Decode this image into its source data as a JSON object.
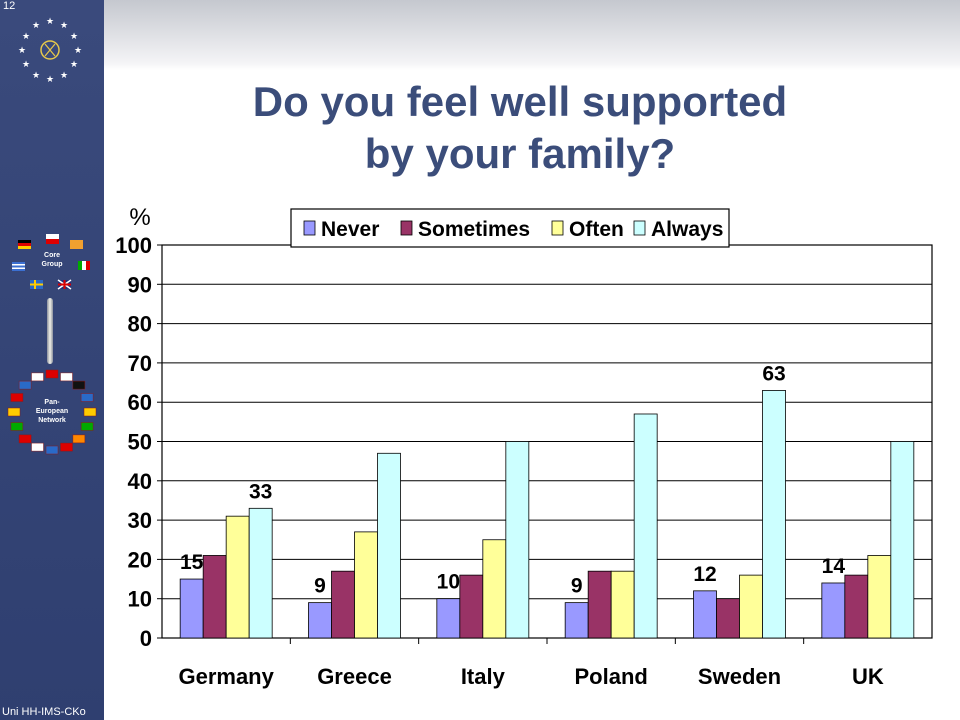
{
  "slide": {
    "number": "12",
    "footer": "Uni HH-IMS-CKo"
  },
  "sidebar": {
    "core_group_label": "Core Group",
    "network_label": "Pan-European Network"
  },
  "title": {
    "line1": "Do you feel well supported",
    "line2": "by your family?"
  },
  "colors": {
    "sidebar": "#3a4a7c",
    "title": "#3b4d7a",
    "never": "#9999ff",
    "sometimes": "#993366",
    "often": "#ffff99",
    "always": "#ccffff"
  },
  "chart_data": {
    "type": "bar",
    "ylabel": "%",
    "ylim": [
      0,
      100
    ],
    "ytick_step": 10,
    "grid": true,
    "legend_position": "top",
    "categories": [
      "Germany",
      "Greece",
      "Italy",
      "Poland",
      "Sweden",
      "UK"
    ],
    "series": [
      {
        "name": "Never",
        "color": "#9999ff",
        "values": [
          15,
          9,
          10,
          9,
          12,
          14
        ]
      },
      {
        "name": "Sometimes",
        "color": "#993366",
        "values": [
          21,
          17,
          16,
          17,
          10,
          16
        ]
      },
      {
        "name": "Often",
        "color": "#ffff99",
        "values": [
          31,
          27,
          25,
          17,
          16,
          21
        ]
      },
      {
        "name": "Always",
        "color": "#ccffff",
        "values": [
          33,
          47,
          50,
          57,
          63,
          50
        ]
      }
    ],
    "data_labels": [
      {
        "category": "Germany",
        "series": "Never",
        "text": "15"
      },
      {
        "category": "Germany",
        "series": "Always",
        "text": "33"
      },
      {
        "category": "Greece",
        "series": "Never",
        "text": "9"
      },
      {
        "category": "Italy",
        "series": "Never",
        "text": "10"
      },
      {
        "category": "Poland",
        "series": "Never",
        "text": "9"
      },
      {
        "category": "Sweden",
        "series": "Never",
        "text": "12"
      },
      {
        "category": "Sweden",
        "series": "Always",
        "text": "63"
      },
      {
        "category": "UK",
        "series": "Never",
        "text": "14"
      }
    ]
  }
}
